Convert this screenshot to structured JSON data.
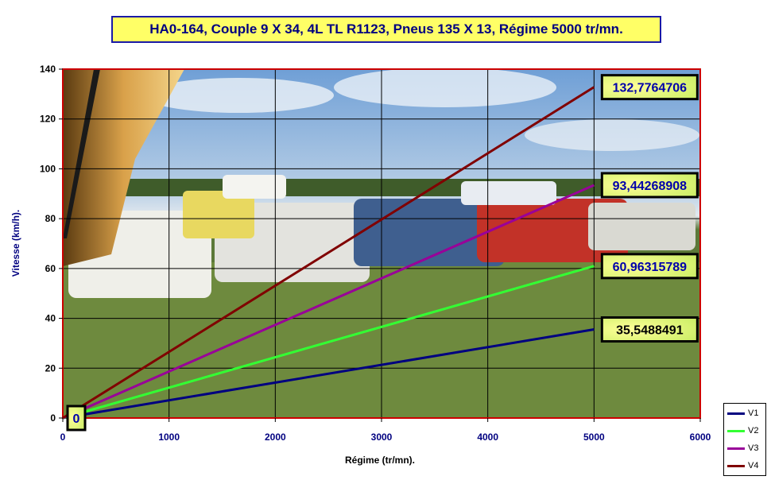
{
  "chart_data": {
    "type": "line",
    "title": "HA0-164, Couple 9 X 34, 4L TL R1123, Pneus 135 X 13, Régime 5000 tr/mn.",
    "xlabel": "Régime (tr/mn).",
    "ylabel": "Vitesse (km/h).",
    "xlim": [
      0,
      6000
    ],
    "ylim": [
      0,
      140
    ],
    "xticks": [
      "0",
      "1000",
      "2000",
      "3000",
      "4000",
      "5000",
      "6000"
    ],
    "yticks": [
      "0",
      "20",
      "40",
      "60",
      "80",
      "100",
      "120",
      "140"
    ],
    "grid": true,
    "legend_position": "bottom-right",
    "series": [
      {
        "name": "V1",
        "color": "#000080",
        "x": [
          0,
          5000
        ],
        "y": [
          0,
          35.5488491
        ],
        "end_label": "35,5488491",
        "end_label_color": "#000000"
      },
      {
        "name": "V2",
        "color": "#33ff33",
        "x": [
          0,
          5000
        ],
        "y": [
          0,
          60.96315789
        ],
        "end_label": "60,96315789",
        "end_label_color": "#0000aa"
      },
      {
        "name": "V3",
        "color": "#990099",
        "x": [
          0,
          5000
        ],
        "y": [
          0,
          93.44268908
        ],
        "end_label": "93,44268908",
        "end_label_color": "#0000aa"
      },
      {
        "name": "V4",
        "color": "#800000",
        "x": [
          0,
          5000
        ],
        "y": [
          0,
          132.7764706
        ],
        "end_label": "132,7764706",
        "end_label_color": "#0000aa"
      }
    ],
    "origin_label": "0",
    "colors": {
      "title_bg": "#ffff66",
      "title_border": "#1a1aa6",
      "plot_border": "#cc0000",
      "axis_text": "#000080",
      "label_bg": "#ffff66"
    }
  }
}
